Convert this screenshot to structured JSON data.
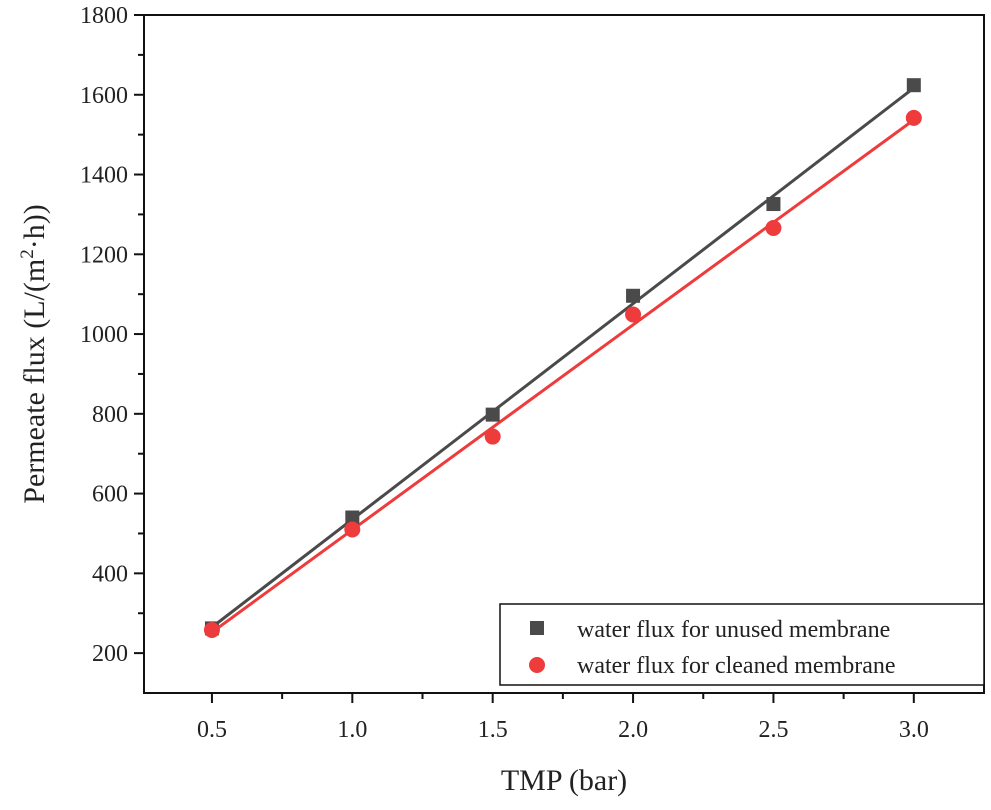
{
  "chart_data": {
    "type": "scatter",
    "title": "",
    "xlabel": "TMP (bar)",
    "ylabel_main": "Permeate flux (L/(m",
    "ylabel_sup": "2",
    "ylabel_tail": "·h))",
    "xlim": [
      0.258,
      3.25
    ],
    "ylim": [
      100,
      1800
    ],
    "xticks": [
      0.5,
      1.0,
      1.5,
      2.0,
      2.5,
      3.0
    ],
    "xtick_labels": [
      "0.5",
      "1.0",
      "1.5",
      "2.0",
      "2.5",
      "3.0"
    ],
    "yticks": [
      200,
      400,
      600,
      800,
      1000,
      1200,
      1400,
      1600,
      1800
    ],
    "ytick_labels": [
      "200",
      "400",
      "600",
      "800",
      "1000",
      "1200",
      "1400",
      "1600",
      "1800"
    ],
    "grid": false,
    "legend_position": "bottom-right",
    "x": [
      0.5,
      1.0,
      1.5,
      2.0,
      2.5,
      3.0
    ],
    "series": [
      {
        "name": "water flux for unused membrane",
        "marker": "square",
        "color": "#4a4a4a",
        "values": [
          262,
          540,
          798,
          1096,
          1326,
          1624
        ],
        "linear_fit": true
      },
      {
        "name": "water flux for cleaned membrane",
        "marker": "circle",
        "color": "#ee3b3b",
        "values": [
          258,
          510,
          743,
          1049,
          1266,
          1542
        ],
        "linear_fit": true
      }
    ]
  }
}
